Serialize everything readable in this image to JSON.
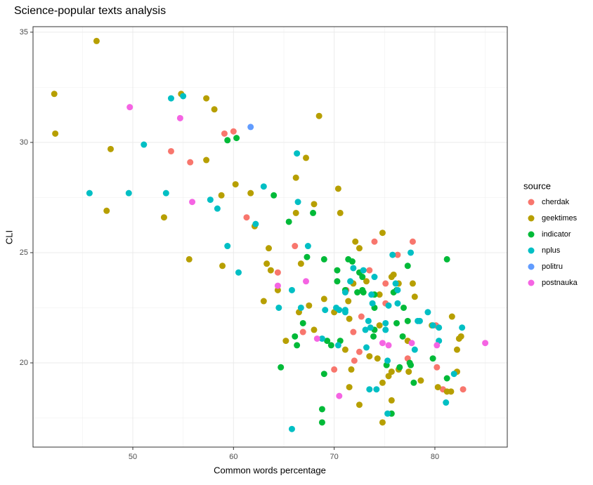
{
  "chart_data": {
    "type": "scatter",
    "title": "Science-popular texts analysis",
    "x_label": "Common words percentage",
    "y_label": "CLI",
    "legend_title": "source",
    "xlim": [
      40.09,
      87.19
    ],
    "ylim": [
      16.18,
      35.25
    ],
    "xticks": [
      50,
      60,
      70,
      80
    ],
    "yticks": [
      20,
      25,
      30,
      35
    ],
    "grid": true,
    "legend_position": "right",
    "series": [
      {
        "name": "cherdak",
        "color": "#F8766D",
        "x": [
          59.1,
          60.0,
          53.8,
          55.7,
          61.3,
          66.1,
          64.4,
          74.0,
          76.3,
          77.8,
          73.5,
          71.2,
          66.9,
          71.9,
          75.1,
          70.0,
          72.0,
          72.5,
          77.3,
          80.2,
          80.8,
          82.8,
          72.7,
          75.1,
          80.1
        ],
        "y": [
          30.4,
          30.5,
          29.6,
          29.1,
          26.6,
          25.3,
          24.1,
          25.5,
          24.9,
          25.5,
          24.2,
          23.3,
          21.4,
          21.4,
          22.7,
          19.7,
          20.1,
          20.5,
          20.2,
          19.8,
          18.8,
          18.8,
          22.1,
          23.6,
          21.7
        ]
      },
      {
        "name": "geektimes",
        "color": "#B79F00",
        "x": [
          42.2,
          42.3,
          46.4,
          47.8,
          47.4,
          53.1,
          54.8,
          57.3,
          58.1,
          57.3,
          60.2,
          61.7,
          58.8,
          55.6,
          58.9,
          63.5,
          62.1,
          66.2,
          67.2,
          68.5,
          70.4,
          70.6,
          68.0,
          66.2,
          63.3,
          63.7,
          64.4,
          63.0,
          66.7,
          67.5,
          66.5,
          68.0,
          65.2,
          69.0,
          70.0,
          71.5,
          72.1,
          72.5,
          74.8,
          73.2,
          71.9,
          74.5,
          75.7,
          75.9,
          76.4,
          78.0,
          71.4,
          71.1,
          71.7,
          71.5,
          72.5,
          73.5,
          74.3,
          74.5,
          75.7,
          76.4,
          74.8,
          75.4,
          74.8,
          75.7,
          77.3,
          77.4,
          78.6,
          79.7,
          80.3,
          81.2,
          81.6,
          82.2,
          82.2,
          82.4,
          82.6,
          81.7,
          77.8
        ],
        "y": [
          32.2,
          30.4,
          34.6,
          29.7,
          26.9,
          26.6,
          32.2,
          32.0,
          31.5,
          29.2,
          28.1,
          27.7,
          27.6,
          24.7,
          24.4,
          25.2,
          26.2,
          28.4,
          29.3,
          31.2,
          27.9,
          26.8,
          27.2,
          26.8,
          24.5,
          24.2,
          23.3,
          22.8,
          24.5,
          22.6,
          22.3,
          21.5,
          21.0,
          22.9,
          22.3,
          22.0,
          25.5,
          25.2,
          25.9,
          23.7,
          23.6,
          23.1,
          23.9,
          24.0,
          23.6,
          23.0,
          22.8,
          20.6,
          19.7,
          18.9,
          18.1,
          20.3,
          20.2,
          21.7,
          19.6,
          19.7,
          19.1,
          19.4,
          17.3,
          18.3,
          21.0,
          19.6,
          19.2,
          21.7,
          18.9,
          18.7,
          18.7,
          19.6,
          20.6,
          21.1,
          21.2,
          22.1,
          23.6
        ]
      },
      {
        "name": "indicator",
        "color": "#00BA38",
        "x": [
          59.4,
          60.3,
          64.0,
          65.5,
          67.9,
          69.0,
          67.3,
          70.3,
          71.4,
          71.8,
          72.8,
          72.5,
          72.3,
          70.3,
          71.1,
          72.8,
          72.9,
          74.0,
          74.0,
          75.9,
          76.2,
          76.9,
          77.3,
          76.2,
          77.3,
          81.2,
          66.1,
          66.3,
          66.9,
          69.7,
          70.6,
          69.3,
          73.9,
          74.0,
          75.2,
          76.5,
          77.5,
          77.6,
          79.8,
          77.9,
          81.2,
          64.7,
          69.0,
          68.8,
          68.8,
          75.7,
          76.8
        ],
        "y": [
          30.1,
          30.2,
          27.6,
          26.4,
          26.8,
          24.7,
          24.8,
          24.2,
          24.7,
          24.6,
          23.9,
          24.1,
          23.2,
          23.7,
          23.3,
          23.3,
          23.2,
          23.1,
          22.5,
          23.2,
          23.3,
          22.5,
          24.4,
          21.8,
          21.9,
          24.7,
          21.2,
          20.8,
          21.8,
          20.8,
          21.0,
          21.0,
          21.2,
          21.5,
          19.9,
          19.8,
          20.0,
          19.9,
          20.2,
          19.1,
          19.3,
          19.8,
          19.5,
          17.9,
          17.3,
          17.7,
          21.2
        ]
      },
      {
        "name": "nplus",
        "color": "#00BFC4",
        "x": [
          45.7,
          49.6,
          51.1,
          53.3,
          53.8,
          55.0,
          57.7,
          58.4,
          59.4,
          60.5,
          62.2,
          63.0,
          66.3,
          66.4,
          67.4,
          64.5,
          66.7,
          65.8,
          68.8,
          69.1,
          70.2,
          70.5,
          71.1,
          71.1,
          71.6,
          71.9,
          72.9,
          71.1,
          73.4,
          73.6,
          73.1,
          74.0,
          73.7,
          73.8,
          75.4,
          76.1,
          75.8,
          77.6,
          76.3,
          76.3,
          75.1,
          75.1,
          78.5,
          79.3,
          79.8,
          80.4,
          80.4,
          82.7,
          81.9,
          81.1,
          70.4,
          73.2,
          74.2,
          73.5,
          75.3,
          75.3,
          65.8,
          78.3,
          78.0
        ],
        "y": [
          27.7,
          27.7,
          29.9,
          27.7,
          32.0,
          32.1,
          27.4,
          27.0,
          25.3,
          24.1,
          26.3,
          28.0,
          29.5,
          27.3,
          25.3,
          22.5,
          22.5,
          23.3,
          21.1,
          22.4,
          22.5,
          22.4,
          22.3,
          22.4,
          23.7,
          24.3,
          24.2,
          23.2,
          21.9,
          21.6,
          21.5,
          23.9,
          23.1,
          22.7,
          22.6,
          23.6,
          24.9,
          25.0,
          23.3,
          22.7,
          21.8,
          21.5,
          21.9,
          22.3,
          21.7,
          21.6,
          21.0,
          21.6,
          19.5,
          18.2,
          20.8,
          20.7,
          18.8,
          18.8,
          20.1,
          17.7,
          17.0,
          21.9,
          20.6
        ]
      },
      {
        "name": "politru",
        "color": "#619CFF",
        "x": [
          61.7
        ],
        "y": [
          30.7
        ]
      },
      {
        "name": "postnauka",
        "color": "#F564E3",
        "x": [
          49.7,
          54.7,
          55.9,
          64.4,
          67.2,
          68.3,
          70.5,
          74.8,
          75.4,
          77.7,
          80.2,
          85.0
        ],
        "y": [
          31.6,
          31.1,
          27.3,
          23.5,
          23.7,
          21.1,
          18.5,
          20.9,
          20.8,
          20.9,
          20.8,
          20.9
        ]
      }
    ]
  }
}
